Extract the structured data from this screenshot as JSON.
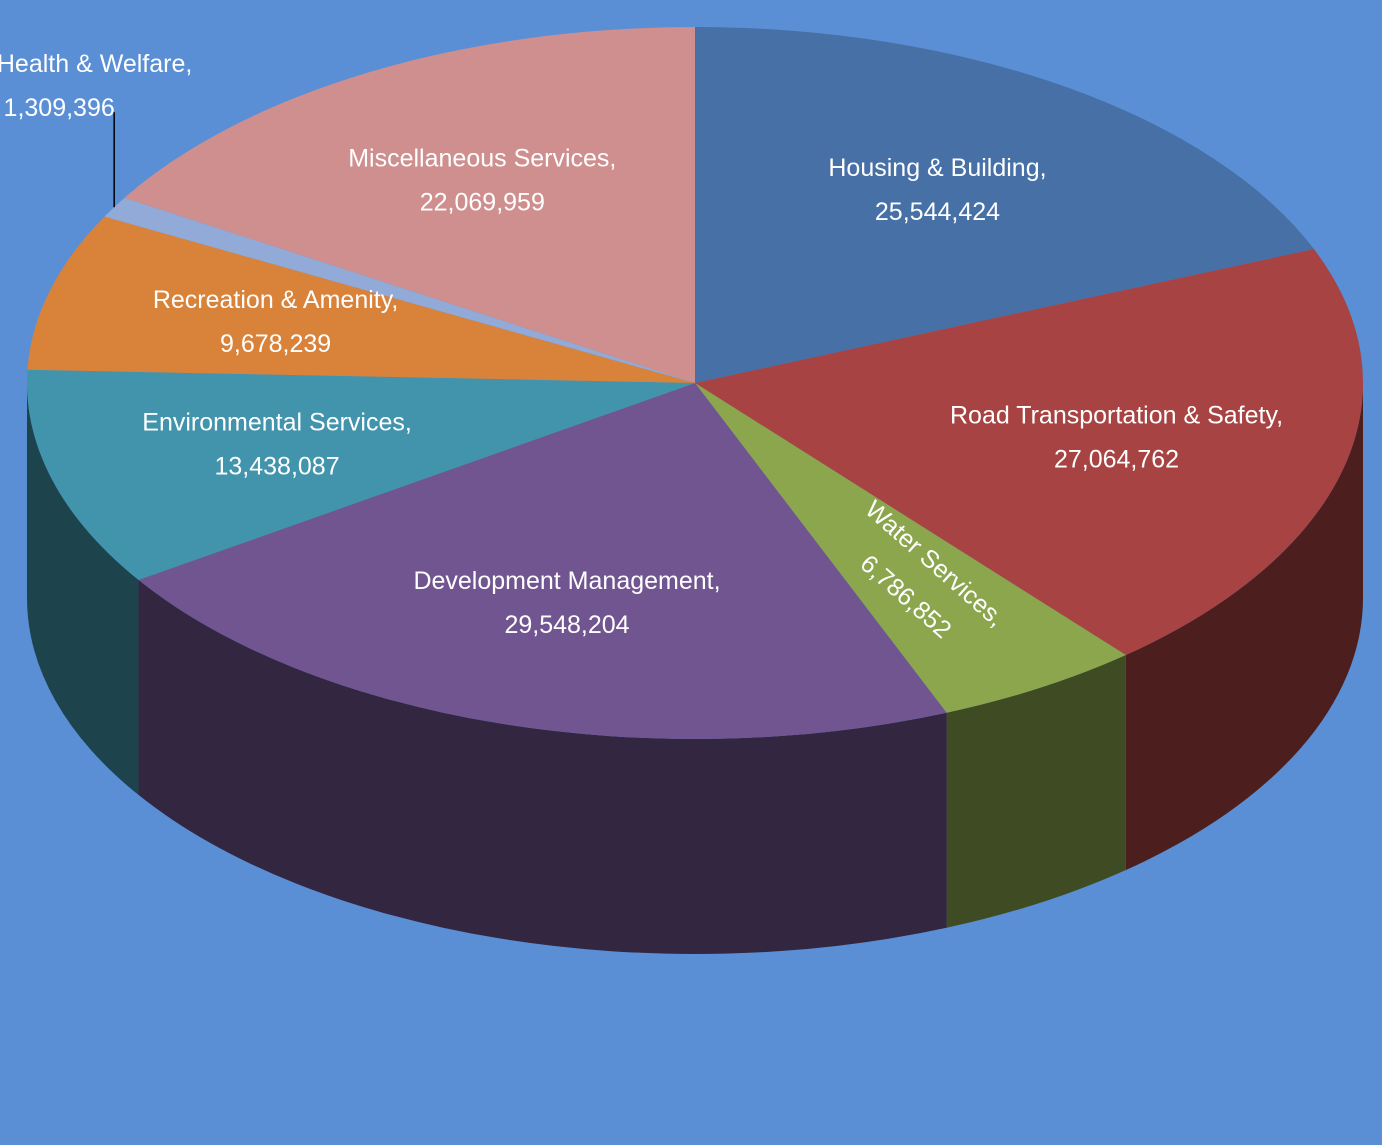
{
  "chart_data": {
    "type": "pie3d",
    "categories": [
      "Housing & Building,",
      "Road Transportation & Safety,",
      "Water Services,",
      "Development Management,",
      "Environmental Services,",
      "Recreation & Amenity,",
      "Educ, Health & Welfare,",
      "Miscellaneous Services,"
    ],
    "values": [
      25544424,
      27064762,
      6786852,
      29548204,
      13438087,
      9678239,
      1309396,
      22069959
    ],
    "value_labels": [
      "25,544,424",
      "27,064,762",
      "6,786,852",
      "29,548,204",
      "13,438,087",
      "9,678,239",
      "1,309,396",
      "22,069,959"
    ],
    "colors": [
      "#4670a6",
      "#a84343",
      "#8ba64c",
      "#715590",
      "#4194ac",
      "#d9823a",
      "#91aad8",
      "#cf8f8f"
    ],
    "background": "#5a8fd6"
  }
}
